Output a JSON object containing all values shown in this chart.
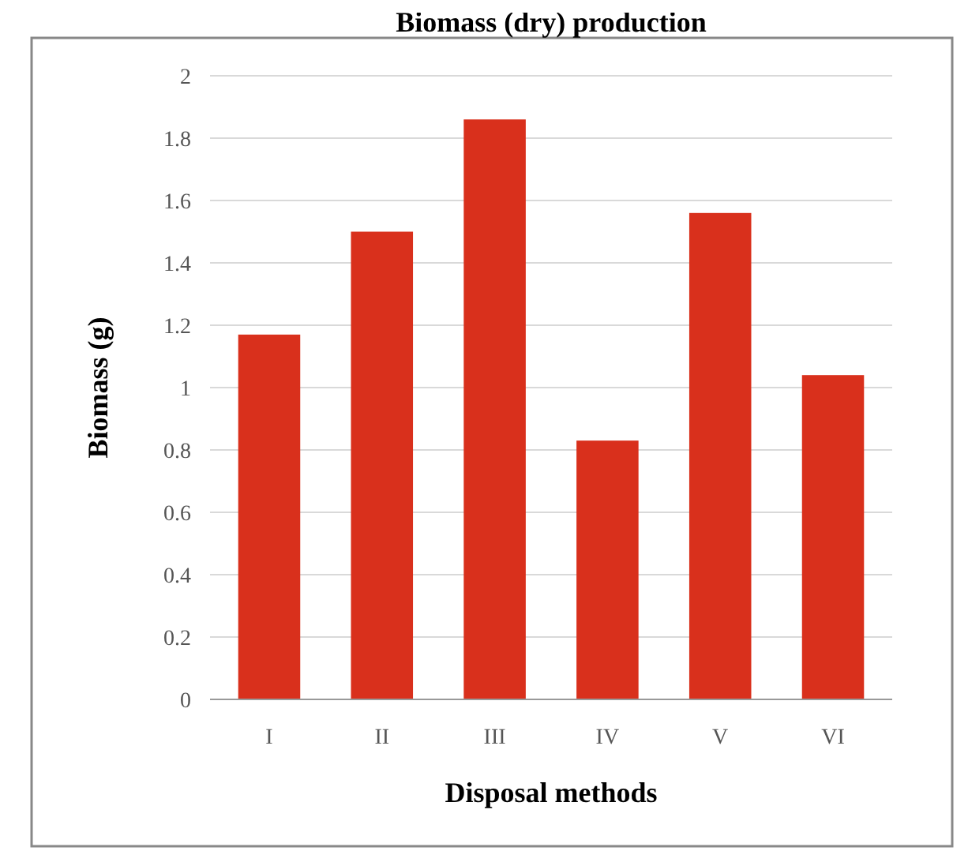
{
  "chart_data": {
    "type": "bar",
    "title": "Biomass (dry) production",
    "xlabel": "Disposal methods",
    "ylabel": "Biomass (g)",
    "categories": [
      "I",
      "II",
      "III",
      "IV",
      "V",
      "VI"
    ],
    "values": [
      1.17,
      1.5,
      1.86,
      0.83,
      1.56,
      1.04
    ],
    "color": "#d9301c",
    "ylim": [
      0,
      2
    ],
    "yticks": [
      0,
      0.2,
      0.4,
      0.6,
      0.8,
      1,
      1.2,
      1.4,
      1.6,
      1.8,
      2
    ],
    "grid": "y"
  }
}
